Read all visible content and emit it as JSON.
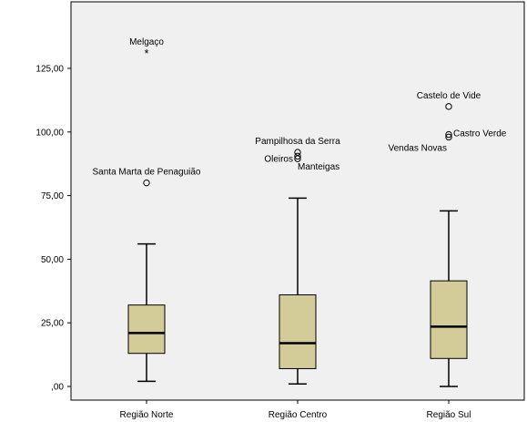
{
  "chart_data": {
    "type": "boxplot",
    "title": "",
    "xlabel": "",
    "ylabel": "",
    "ylim": [
      -5,
      145
    ],
    "y_ticks": [
      {
        "value": 0,
        "label": ",00"
      },
      {
        "value": 25,
        "label": "25,00"
      },
      {
        "value": 50,
        "label": "50,00"
      },
      {
        "value": 75,
        "label": "75,00"
      },
      {
        "value": 100,
        "label": "100,00"
      },
      {
        "value": 125,
        "label": "125,00"
      }
    ],
    "categories": [
      "Região Norte",
      "Região Centro",
      "Região Sul"
    ],
    "box_color": "#d3cc98",
    "boxes": [
      {
        "category": "Região Norte",
        "whisker_low": 2,
        "q1": 13,
        "median": 21,
        "q3": 32,
        "whisker_high": 56
      },
      {
        "category": "Região Centro",
        "whisker_low": 1,
        "q1": 7,
        "median": 17,
        "q3": 36,
        "whisker_high": 74
      },
      {
        "category": "Região Sul",
        "whisker_low": 0,
        "q1": 11,
        "median": 23.5,
        "q3": 41.5,
        "whisker_high": 69
      }
    ],
    "outliers": [
      {
        "category": "Região Norte",
        "value": 131,
        "marker": "star",
        "label": "Melgaço",
        "label_anchor": "middle"
      },
      {
        "category": "Região Norte",
        "value": 80,
        "marker": "circle",
        "label": "Santa Marta de Penaguião",
        "label_anchor": "middle"
      },
      {
        "category": "Região Centro",
        "value": 92,
        "marker": "circle",
        "label": "Pampilhosa da Serra",
        "label_anchor": "middle"
      },
      {
        "category": "Região Centro",
        "value": 90.5,
        "marker": "circle",
        "label": "Oleiros",
        "label_anchor": "end"
      },
      {
        "category": "Região Centro",
        "value": 89.5,
        "marker": "circle",
        "label": "Manteigas",
        "label_anchor": "start"
      },
      {
        "category": "Região Sul",
        "value": 110,
        "marker": "circle",
        "label": "Castelo de Vide",
        "label_anchor": "middle"
      },
      {
        "category": "Região Sul",
        "value": 99,
        "marker": "circle",
        "label": "Castro Verde",
        "label_anchor": "start"
      },
      {
        "category": "Região Sul",
        "value": 98,
        "marker": "circle",
        "label": "Vendas Novas",
        "label_anchor": "end"
      }
    ]
  }
}
